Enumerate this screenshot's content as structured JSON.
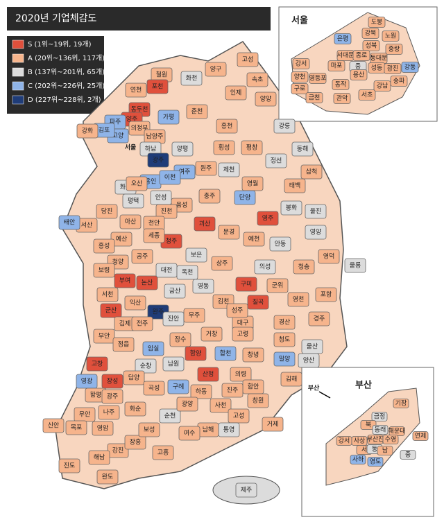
{
  "title": "2020년 기업체감도",
  "legend": [
    {
      "grade": "S",
      "label": "S (1위~19위, 19개)",
      "color": "#e0503c"
    },
    {
      "grade": "A",
      "label": "A (20위~136위, 117개)",
      "color": "#f6b48c"
    },
    {
      "grade": "B",
      "label": "B (137위~201위, 65개)",
      "color": "#dcdcdc"
    },
    {
      "grade": "C",
      "label": "C (202위~226위, 25개)",
      "color": "#8fb4e8"
    },
    {
      "grade": "D",
      "label": "D (227위~228위, 2개)",
      "color": "#1f3c78"
    }
  ],
  "regions": [
    {
      "name": "철원",
      "grade": "A"
    },
    {
      "name": "화천",
      "grade": "B"
    },
    {
      "name": "양구",
      "grade": "A"
    },
    {
      "name": "인제",
      "grade": "A"
    },
    {
      "name": "고성",
      "grade": "A"
    },
    {
      "name": "속초",
      "grade": "A"
    },
    {
      "name": "양양",
      "grade": "A"
    },
    {
      "name": "연천",
      "grade": "A"
    },
    {
      "name": "포천",
      "grade": "S"
    },
    {
      "name": "동두천",
      "grade": "S"
    },
    {
      "name": "양주",
      "grade": "S"
    },
    {
      "name": "의정부",
      "grade": "A"
    },
    {
      "name": "파주",
      "grade": "C"
    },
    {
      "name": "고양",
      "grade": "C"
    },
    {
      "name": "김포",
      "grade": "C"
    },
    {
      "name": "강화",
      "grade": "A"
    },
    {
      "name": "가평",
      "grade": "C"
    },
    {
      "name": "남양주",
      "grade": "A"
    },
    {
      "name": "춘천",
      "grade": "A"
    },
    {
      "name": "홍천",
      "grade": "A"
    },
    {
      "name": "강릉",
      "grade": "B"
    },
    {
      "name": "평창",
      "grade": "A"
    },
    {
      "name": "횡성",
      "grade": "A"
    },
    {
      "name": "정선",
      "grade": "B"
    },
    {
      "name": "동해",
      "grade": "B"
    },
    {
      "name": "삼척",
      "grade": "A"
    },
    {
      "name": "하남",
      "grade": "B"
    },
    {
      "name": "양평",
      "grade": "B"
    },
    {
      "name": "광주",
      "grade": "D"
    },
    {
      "name": "원주",
      "grade": "A"
    },
    {
      "name": "용인",
      "grade": "C"
    },
    {
      "name": "여주",
      "grade": "C"
    },
    {
      "name": "이천",
      "grade": "C"
    },
    {
      "name": "화성",
      "grade": "B"
    },
    {
      "name": "오산",
      "grade": "A"
    },
    {
      "name": "평택",
      "grade": "B"
    },
    {
      "name": "안성",
      "grade": "B"
    },
    {
      "name": "영월",
      "grade": "A"
    },
    {
      "name": "태백",
      "grade": "A"
    },
    {
      "name": "제천",
      "grade": "B"
    },
    {
      "name": "충주",
      "grade": "A"
    },
    {
      "name": "단양",
      "grade": "C"
    },
    {
      "name": "음성",
      "grade": "A"
    },
    {
      "name": "진천",
      "grade": "A"
    },
    {
      "name": "괴산",
      "grade": "S"
    },
    {
      "name": "영주",
      "grade": "S"
    },
    {
      "name": "봉화",
      "grade": "B"
    },
    {
      "name": "울진",
      "grade": "B"
    },
    {
      "name": "당진",
      "grade": "A"
    },
    {
      "name": "서산",
      "grade": "A"
    },
    {
      "name": "태안",
      "grade": "C"
    },
    {
      "name": "아산",
      "grade": "A"
    },
    {
      "name": "천안",
      "grade": "A"
    },
    {
      "name": "예산",
      "grade": "A"
    },
    {
      "name": "홍성",
      "grade": "A"
    },
    {
      "name": "청주",
      "grade": "S"
    },
    {
      "name": "세종",
      "grade": "A"
    },
    {
      "name": "공주",
      "grade": "A"
    },
    {
      "name": "보은",
      "grade": "B"
    },
    {
      "name": "문경",
      "grade": "A"
    },
    {
      "name": "예천",
      "grade": "A"
    },
    {
      "name": "안동",
      "grade": "B"
    },
    {
      "name": "영양",
      "grade": "B"
    },
    {
      "name": "청양",
      "grade": "A"
    },
    {
      "name": "보령",
      "grade": "A"
    },
    {
      "name": "부여",
      "grade": "S"
    },
    {
      "name": "논산",
      "grade": "S"
    },
    {
      "name": "대전",
      "grade": "B"
    },
    {
      "name": "옥천",
      "grade": "B"
    },
    {
      "name": "상주",
      "grade": "A"
    },
    {
      "name": "의성",
      "grade": "B"
    },
    {
      "name": "청송",
      "grade": "A"
    },
    {
      "name": "영덕",
      "grade": "A"
    },
    {
      "name": "울릉",
      "grade": "B"
    },
    {
      "name": "영동",
      "grade": "B"
    },
    {
      "name": "구미",
      "grade": "S"
    },
    {
      "name": "군위",
      "grade": "A"
    },
    {
      "name": "서천",
      "grade": "A"
    },
    {
      "name": "금산",
      "grade": "B"
    },
    {
      "name": "익산",
      "grade": "A"
    },
    {
      "name": "군산",
      "grade": "S"
    },
    {
      "name": "완주",
      "grade": "D"
    },
    {
      "name": "김천",
      "grade": "A"
    },
    {
      "name": "칠곡",
      "grade": "S"
    },
    {
      "name": "영천",
      "grade": "A"
    },
    {
      "name": "포항",
      "grade": "A"
    },
    {
      "name": "대구",
      "grade": "A"
    },
    {
      "name": "경산",
      "grade": "A"
    },
    {
      "name": "경주",
      "grade": "A"
    },
    {
      "name": "김제",
      "grade": "A"
    },
    {
      "name": "전주",
      "grade": "A"
    },
    {
      "name": "진안",
      "grade": "B"
    },
    {
      "name": "무주",
      "grade": "A"
    },
    {
      "name": "성주",
      "grade": "A"
    },
    {
      "name": "고령",
      "grade": "A"
    },
    {
      "name": "청도",
      "grade": "A"
    },
    {
      "name": "울산",
      "grade": "B"
    },
    {
      "name": "부안",
      "grade": "A"
    },
    {
      "name": "정읍",
      "grade": "A"
    },
    {
      "name": "임실",
      "grade": "C"
    },
    {
      "name": "장수",
      "grade": "A"
    },
    {
      "name": "거창",
      "grade": "A"
    },
    {
      "name": "합천",
      "grade": "C"
    },
    {
      "name": "창녕",
      "grade": "A"
    },
    {
      "name": "밀양",
      "grade": "C"
    },
    {
      "name": "양산",
      "grade": "B"
    },
    {
      "name": "고창",
      "grade": "S"
    },
    {
      "name": "순창",
      "grade": "B"
    },
    {
      "name": "남원",
      "grade": "B"
    },
    {
      "name": "함양",
      "grade": "S"
    },
    {
      "name": "산청",
      "grade": "S"
    },
    {
      "name": "의령",
      "grade": "A"
    },
    {
      "name": "함안",
      "grade": "A"
    },
    {
      "name": "창원",
      "grade": "A"
    },
    {
      "name": "김해",
      "grade": "A"
    },
    {
      "name": "영광",
      "grade": "C"
    },
    {
      "name": "장성",
      "grade": "S"
    },
    {
      "name": "담양",
      "grade": "A"
    },
    {
      "name": "곡성",
      "grade": "A"
    },
    {
      "name": "구례",
      "grade": "C"
    },
    {
      "name": "하동",
      "grade": "A"
    },
    {
      "name": "진주",
      "grade": "A"
    },
    {
      "name": "함평",
      "grade": "A"
    },
    {
      "name": "광주",
      "grade": "A"
    },
    {
      "name": "화순",
      "grade": "A"
    },
    {
      "name": "순천",
      "grade": "B"
    },
    {
      "name": "광양",
      "grade": "A"
    },
    {
      "name": "사천",
      "grade": "A"
    },
    {
      "name": "고성",
      "grade": "A"
    },
    {
      "name": "통영",
      "grade": "B"
    },
    {
      "name": "거제",
      "grade": "A"
    },
    {
      "name": "남해",
      "grade": "A"
    },
    {
      "name": "나주",
      "grade": "A"
    },
    {
      "name": "영암",
      "grade": "A"
    },
    {
      "name": "무안",
      "grade": "A"
    },
    {
      "name": "목포",
      "grade": "A"
    },
    {
      "name": "신안",
      "grade": "A"
    },
    {
      "name": "강진",
      "grade": "A"
    },
    {
      "name": "장흥",
      "grade": "A"
    },
    {
      "name": "보성",
      "grade": "A"
    },
    {
      "name": "고흥",
      "grade": "A"
    },
    {
      "name": "여수",
      "grade": "A"
    },
    {
      "name": "해남",
      "grade": "A"
    },
    {
      "name": "진도",
      "grade": "A"
    },
    {
      "name": "완도",
      "grade": "A"
    },
    {
      "name": "제주",
      "grade": "B"
    }
  ],
  "seoul": {
    "title": "서울",
    "districts": [
      {
        "name": "도봉",
        "grade": "A"
      },
      {
        "name": "강북",
        "grade": "A"
      },
      {
        "name": "노원",
        "grade": "A"
      },
      {
        "name": "은평",
        "grade": "C"
      },
      {
        "name": "성북",
        "grade": "A"
      },
      {
        "name": "중랑",
        "grade": "A"
      },
      {
        "name": "서대문",
        "grade": "A"
      },
      {
        "name": "종로",
        "grade": "A"
      },
      {
        "name": "동대문",
        "grade": "A"
      },
      {
        "name": "마포",
        "grade": "A"
      },
      {
        "name": "강서",
        "grade": "A"
      },
      {
        "name": "중",
        "grade": "B"
      },
      {
        "name": "성동",
        "grade": "A"
      },
      {
        "name": "광진",
        "grade": "A"
      },
      {
        "name": "강동",
        "grade": "C"
      },
      {
        "name": "용산",
        "grade": "A"
      },
      {
        "name": "양천",
        "grade": "A"
      },
      {
        "name": "영등포",
        "grade": "A"
      },
      {
        "name": "구로",
        "grade": "A"
      },
      {
        "name": "동작",
        "grade": "A"
      },
      {
        "name": "서초",
        "grade": "A"
      },
      {
        "name": "강남",
        "grade": "A"
      },
      {
        "name": "송파",
        "grade": "A"
      },
      {
        "name": "금천",
        "grade": "A"
      },
      {
        "name": "관악",
        "grade": "A"
      }
    ]
  },
  "busan": {
    "title": "부산",
    "districts": [
      {
        "name": "기장",
        "grade": "A"
      },
      {
        "name": "금정",
        "grade": "B"
      },
      {
        "name": "북",
        "grade": "A"
      },
      {
        "name": "동래",
        "grade": "B"
      },
      {
        "name": "해운대",
        "grade": "A"
      },
      {
        "name": "강서",
        "grade": "A"
      },
      {
        "name": "사상",
        "grade": "A"
      },
      {
        "name": "부산진",
        "grade": "A"
      },
      {
        "name": "수영",
        "grade": "A"
      },
      {
        "name": "연제",
        "grade": "A"
      },
      {
        "name": "서",
        "grade": "A"
      },
      {
        "name": "동",
        "grade": "B"
      },
      {
        "name": "남",
        "grade": "A"
      },
      {
        "name": "사하",
        "grade": "C"
      },
      {
        "name": "영도",
        "grade": "C"
      },
      {
        "name": "중",
        "grade": "B"
      }
    ]
  },
  "mainland_labels": [
    "서울",
    "부산"
  ]
}
